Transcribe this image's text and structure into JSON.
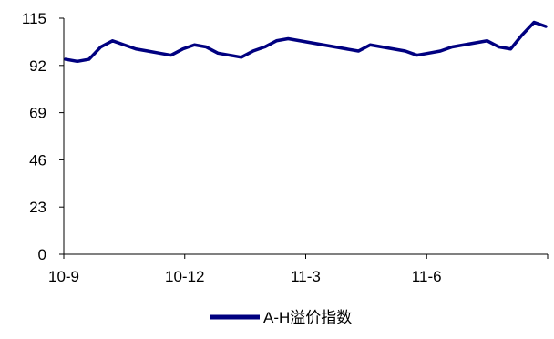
{
  "chart_data": {
    "type": "line",
    "title": "",
    "xlabel": "",
    "ylabel": "",
    "ylim": [
      0,
      115
    ],
    "y_ticks": [
      0,
      23,
      46,
      69,
      92,
      115
    ],
    "x_tick_labels": [
      "10-9",
      "10-12",
      "11-3",
      "11-6",
      ""
    ],
    "grid": false,
    "legend_position": "bottom-center",
    "series": [
      {
        "name": "A-H溢价指数",
        "color": "#000080",
        "x": [
          "2010-09",
          "2010-09",
          "2010-09",
          "2010-10",
          "2010-10",
          "2010-10",
          "2010-10",
          "2010-11",
          "2010-11",
          "2010-11",
          "2010-11",
          "2010-12",
          "2010-12",
          "2010-12",
          "2011-01",
          "2011-01",
          "2011-01",
          "2011-02",
          "2011-02",
          "2011-02",
          "2011-02",
          "2011-03",
          "2011-03",
          "2011-03",
          "2011-04",
          "2011-04",
          "2011-04",
          "2011-05",
          "2011-05",
          "2011-05",
          "2011-05",
          "2011-06",
          "2011-06",
          "2011-06",
          "2011-07",
          "2011-07",
          "2011-07",
          "2011-08",
          "2011-08",
          "2011-08",
          "2011-08",
          "2011-09"
        ],
        "values": [
          95,
          94,
          95,
          101,
          104,
          102,
          100,
          99,
          98,
          97,
          100,
          102,
          101,
          98,
          97,
          96,
          99,
          101,
          104,
          105,
          104,
          103,
          102,
          101,
          100,
          99,
          102,
          101,
          100,
          99,
          97,
          98,
          99,
          101,
          102,
          103,
          104,
          101,
          100,
          107,
          113,
          111
        ]
      }
    ]
  }
}
